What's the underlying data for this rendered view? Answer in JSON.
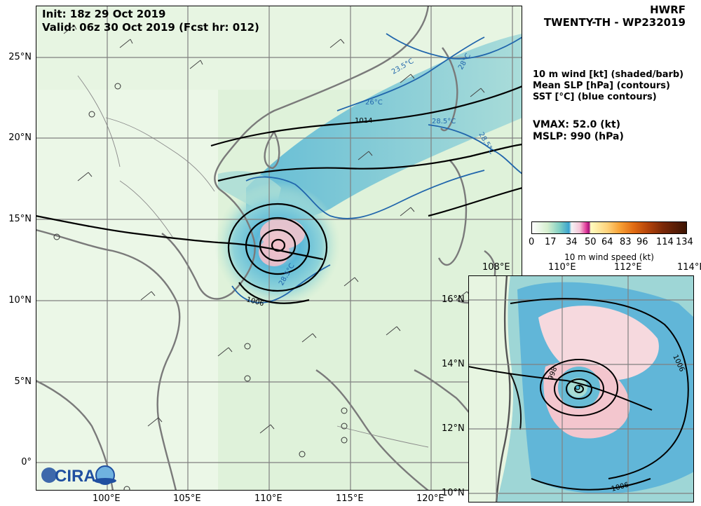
{
  "header": {
    "init_label": "Init:   18z 29 Oct 2019",
    "valid_label": "Valid: 06z 30 Oct 2019 (Fcst hr: 012)",
    "model": "HWRF",
    "storm": "TWENTY-TH - WP232019"
  },
  "legend": {
    "line1": "10 m wind [kt] (shaded/barb)",
    "line2": "Mean SLP [hPa] (contours)",
    "line3": "SST [°C] (blue contours)"
  },
  "stats": {
    "vmax": "VMAX:  52.0 (kt)",
    "mslp": "MSLP:  990 (hPa)"
  },
  "colorbar": {
    "ticks": [
      "0",
      "17",
      "34",
      "50",
      "64",
      "83",
      "96",
      "114",
      "134"
    ],
    "label": "10 m wind speed (kt)"
  },
  "main_map": {
    "lat_ticks": [
      "25°N",
      "20°N",
      "15°N",
      "10°N",
      "5°N",
      "0°"
    ],
    "lon_ticks": [
      "100°E",
      "105°E",
      "110°E",
      "115°E",
      "120°E"
    ],
    "contour_labels": {
      "slp_1014": "1014",
      "slp_1006": "1006",
      "sst_23": "23.5°C",
      "sst_26": "26°C",
      "sst_285a": "28.5°C",
      "sst_285b": "28.5°C",
      "sst_285c": "28.5°C",
      "sst_28": "28°C"
    }
  },
  "inset_map": {
    "lon_ticks": [
      "108°E",
      "110°E",
      "112°E",
      "114°E"
    ],
    "lat_ticks": [
      "16°N",
      "14°N",
      "12°N",
      "10°N"
    ],
    "contour_labels": {
      "slp_1006a": "1006",
      "slp_1006b": "1006",
      "slp_998": "998"
    }
  },
  "logo": {
    "text": "CIRA"
  },
  "colors": {
    "land_outline": "#7a7a7a",
    "slp_contour": "#000000",
    "sst_contour": "#2166ac",
    "grid": "#808080"
  }
}
